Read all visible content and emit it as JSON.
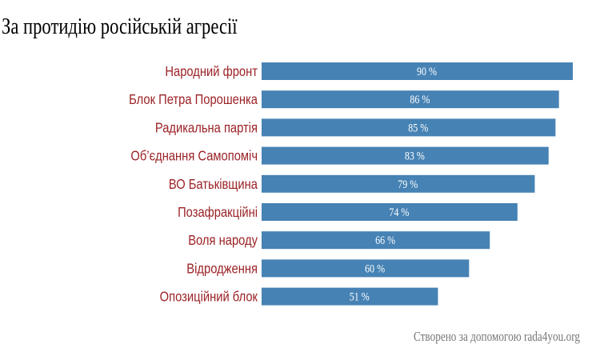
{
  "chart_data": {
    "type": "bar",
    "orientation": "horizontal",
    "title": "За протидію російській агресії",
    "categories": [
      "Народний фронт",
      "Блок Петра Порошенка",
      "Радикальна партія",
      "Об’єднання Самопоміч",
      "ВО Батьківщина",
      "Позафракційні",
      "Воля народу",
      "Відродження",
      "Опозиційний блок"
    ],
    "values": [
      90,
      86,
      85,
      83,
      79,
      74,
      66,
      60,
      51
    ],
    "value_suffix": " %",
    "xlim": [
      0,
      100
    ],
    "xlabel": "",
    "ylabel": "",
    "grid": false,
    "footer": "Створено за допомогою rada4you.org",
    "colors": {
      "bar": "#4682b4",
      "label": "#9b2226",
      "value": "#ffffff",
      "footer": "#777777",
      "title": "#000000"
    }
  }
}
